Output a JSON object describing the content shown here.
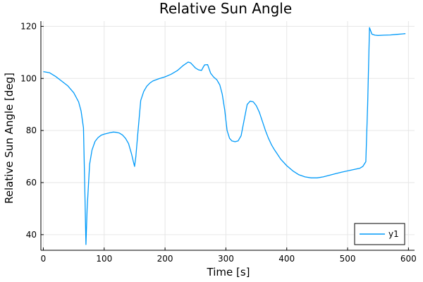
{
  "chart_data": {
    "type": "line",
    "title": "Relative Sun Angle",
    "xlabel": "Time [s]",
    "ylabel": "Relative Sun Angle [deg]",
    "xlim": [
      -4,
      610
    ],
    "ylim": [
      34,
      122
    ],
    "xticks": [
      0,
      100,
      200,
      300,
      400,
      500,
      600
    ],
    "yticks": [
      40,
      60,
      80,
      100,
      120
    ],
    "grid": true,
    "legend": "bottom-right",
    "series": [
      {
        "name": "y1",
        "color": "#009af9",
        "x": [
          0,
          10,
          20,
          30,
          40,
          50,
          58,
          62,
          66,
          68,
          70,
          72,
          76,
          80,
          85,
          90,
          95,
          100,
          110,
          115,
          120,
          125,
          130,
          135,
          140,
          145,
          148,
          150,
          152,
          155,
          160,
          165,
          170,
          175,
          180,
          190,
          200,
          210,
          220,
          230,
          238,
          242,
          246,
          250,
          255,
          260,
          262,
          265,
          270,
          275,
          280,
          285,
          290,
          294,
          298,
          302,
          306,
          310,
          315,
          320,
          325,
          330,
          335,
          340,
          345,
          350,
          355,
          360,
          365,
          370,
          375,
          380,
          385,
          390,
          400,
          410,
          420,
          430,
          440,
          450,
          460,
          470,
          480,
          490,
          500,
          510,
          520,
          525,
          530,
          533,
          536,
          540,
          545,
          550,
          560,
          570,
          580,
          590,
          595
        ],
        "y": [
          102.6,
          102.2,
          100.8,
          99.0,
          97.2,
          94.5,
          91.0,
          87.5,
          81.0,
          60.0,
          36.2,
          50.0,
          67.0,
          72.5,
          75.8,
          77.3,
          78.2,
          78.6,
          79.2,
          79.4,
          79.3,
          79.0,
          78.3,
          77.0,
          75.0,
          71.0,
          68.0,
          66.2,
          70.0,
          78.0,
          91.5,
          95.0,
          97.0,
          98.2,
          99.0,
          99.9,
          100.6,
          101.6,
          103.0,
          105.0,
          106.3,
          106.0,
          105.0,
          104.0,
          103.3,
          103.1,
          104.0,
          105.2,
          105.3,
          102.0,
          100.5,
          99.5,
          97.5,
          94.0,
          88.0,
          80.0,
          77.0,
          76.0,
          75.7,
          76.0,
          78.0,
          84.0,
          90.0,
          91.3,
          91.0,
          89.5,
          87.0,
          83.5,
          80.0,
          77.0,
          74.5,
          72.5,
          70.8,
          69.0,
          66.5,
          64.5,
          63.0,
          62.2,
          61.8,
          61.8,
          62.2,
          62.8,
          63.4,
          64.0,
          64.5,
          65.0,
          65.5,
          66.2,
          68.0,
          90.0,
          119.5,
          117.0,
          116.6,
          116.5,
          116.6,
          116.7,
          116.9,
          117.1,
          117.2
        ]
      }
    ]
  }
}
